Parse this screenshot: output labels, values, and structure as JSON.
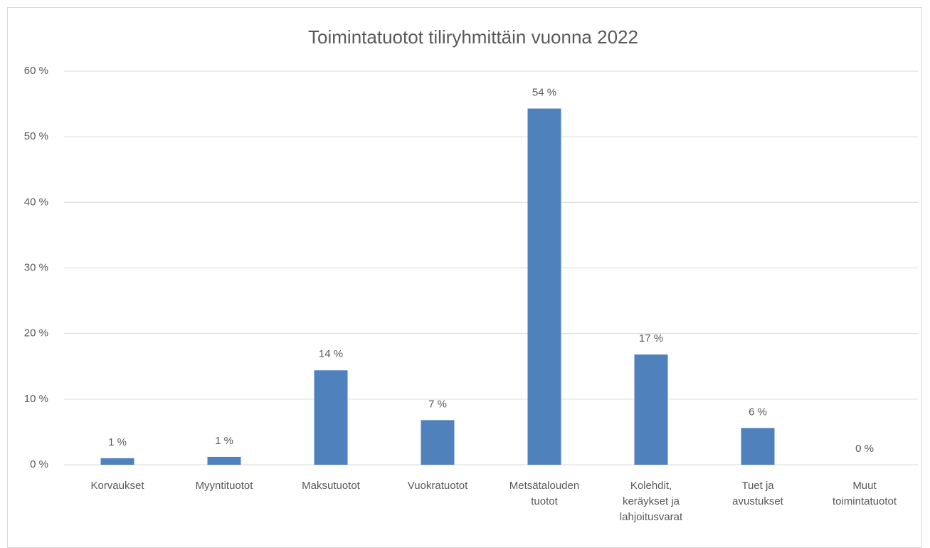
{
  "chart_data": {
    "type": "bar",
    "title": "Toimintatuotot tiliryhmittäin vuonna 2022",
    "categories": [
      "Korvaukset",
      "Myyntituotot",
      "Maksutuotot",
      "Vuokratuotot",
      "Metsätalouden tuotot",
      "Kolehdit, keräykset ja lahjoitusvarat",
      "Tuet ja avustukset",
      "Muut toimintatuotot"
    ],
    "values": [
      1.0,
      1.2,
      14.4,
      6.8,
      54.3,
      16.8,
      5.6,
      0
    ],
    "value_labels": [
      "1 %",
      "1 %",
      "14 %",
      "7 %",
      "54 %",
      "17 %",
      "6 %",
      "0 %"
    ],
    "color": "#4f81bd",
    "ylim": [
      0,
      60
    ],
    "yticks": [
      {
        "value": 0,
        "label": "0 %"
      },
      {
        "value": 10,
        "label": "10 %"
      },
      {
        "value": 20,
        "label": "20 %"
      },
      {
        "value": 30,
        "label": "30 %"
      },
      {
        "value": 40,
        "label": "40 %"
      },
      {
        "value": 50,
        "label": "50 %"
      },
      {
        "value": 60,
        "label": "60 %"
      }
    ],
    "grid": true
  }
}
